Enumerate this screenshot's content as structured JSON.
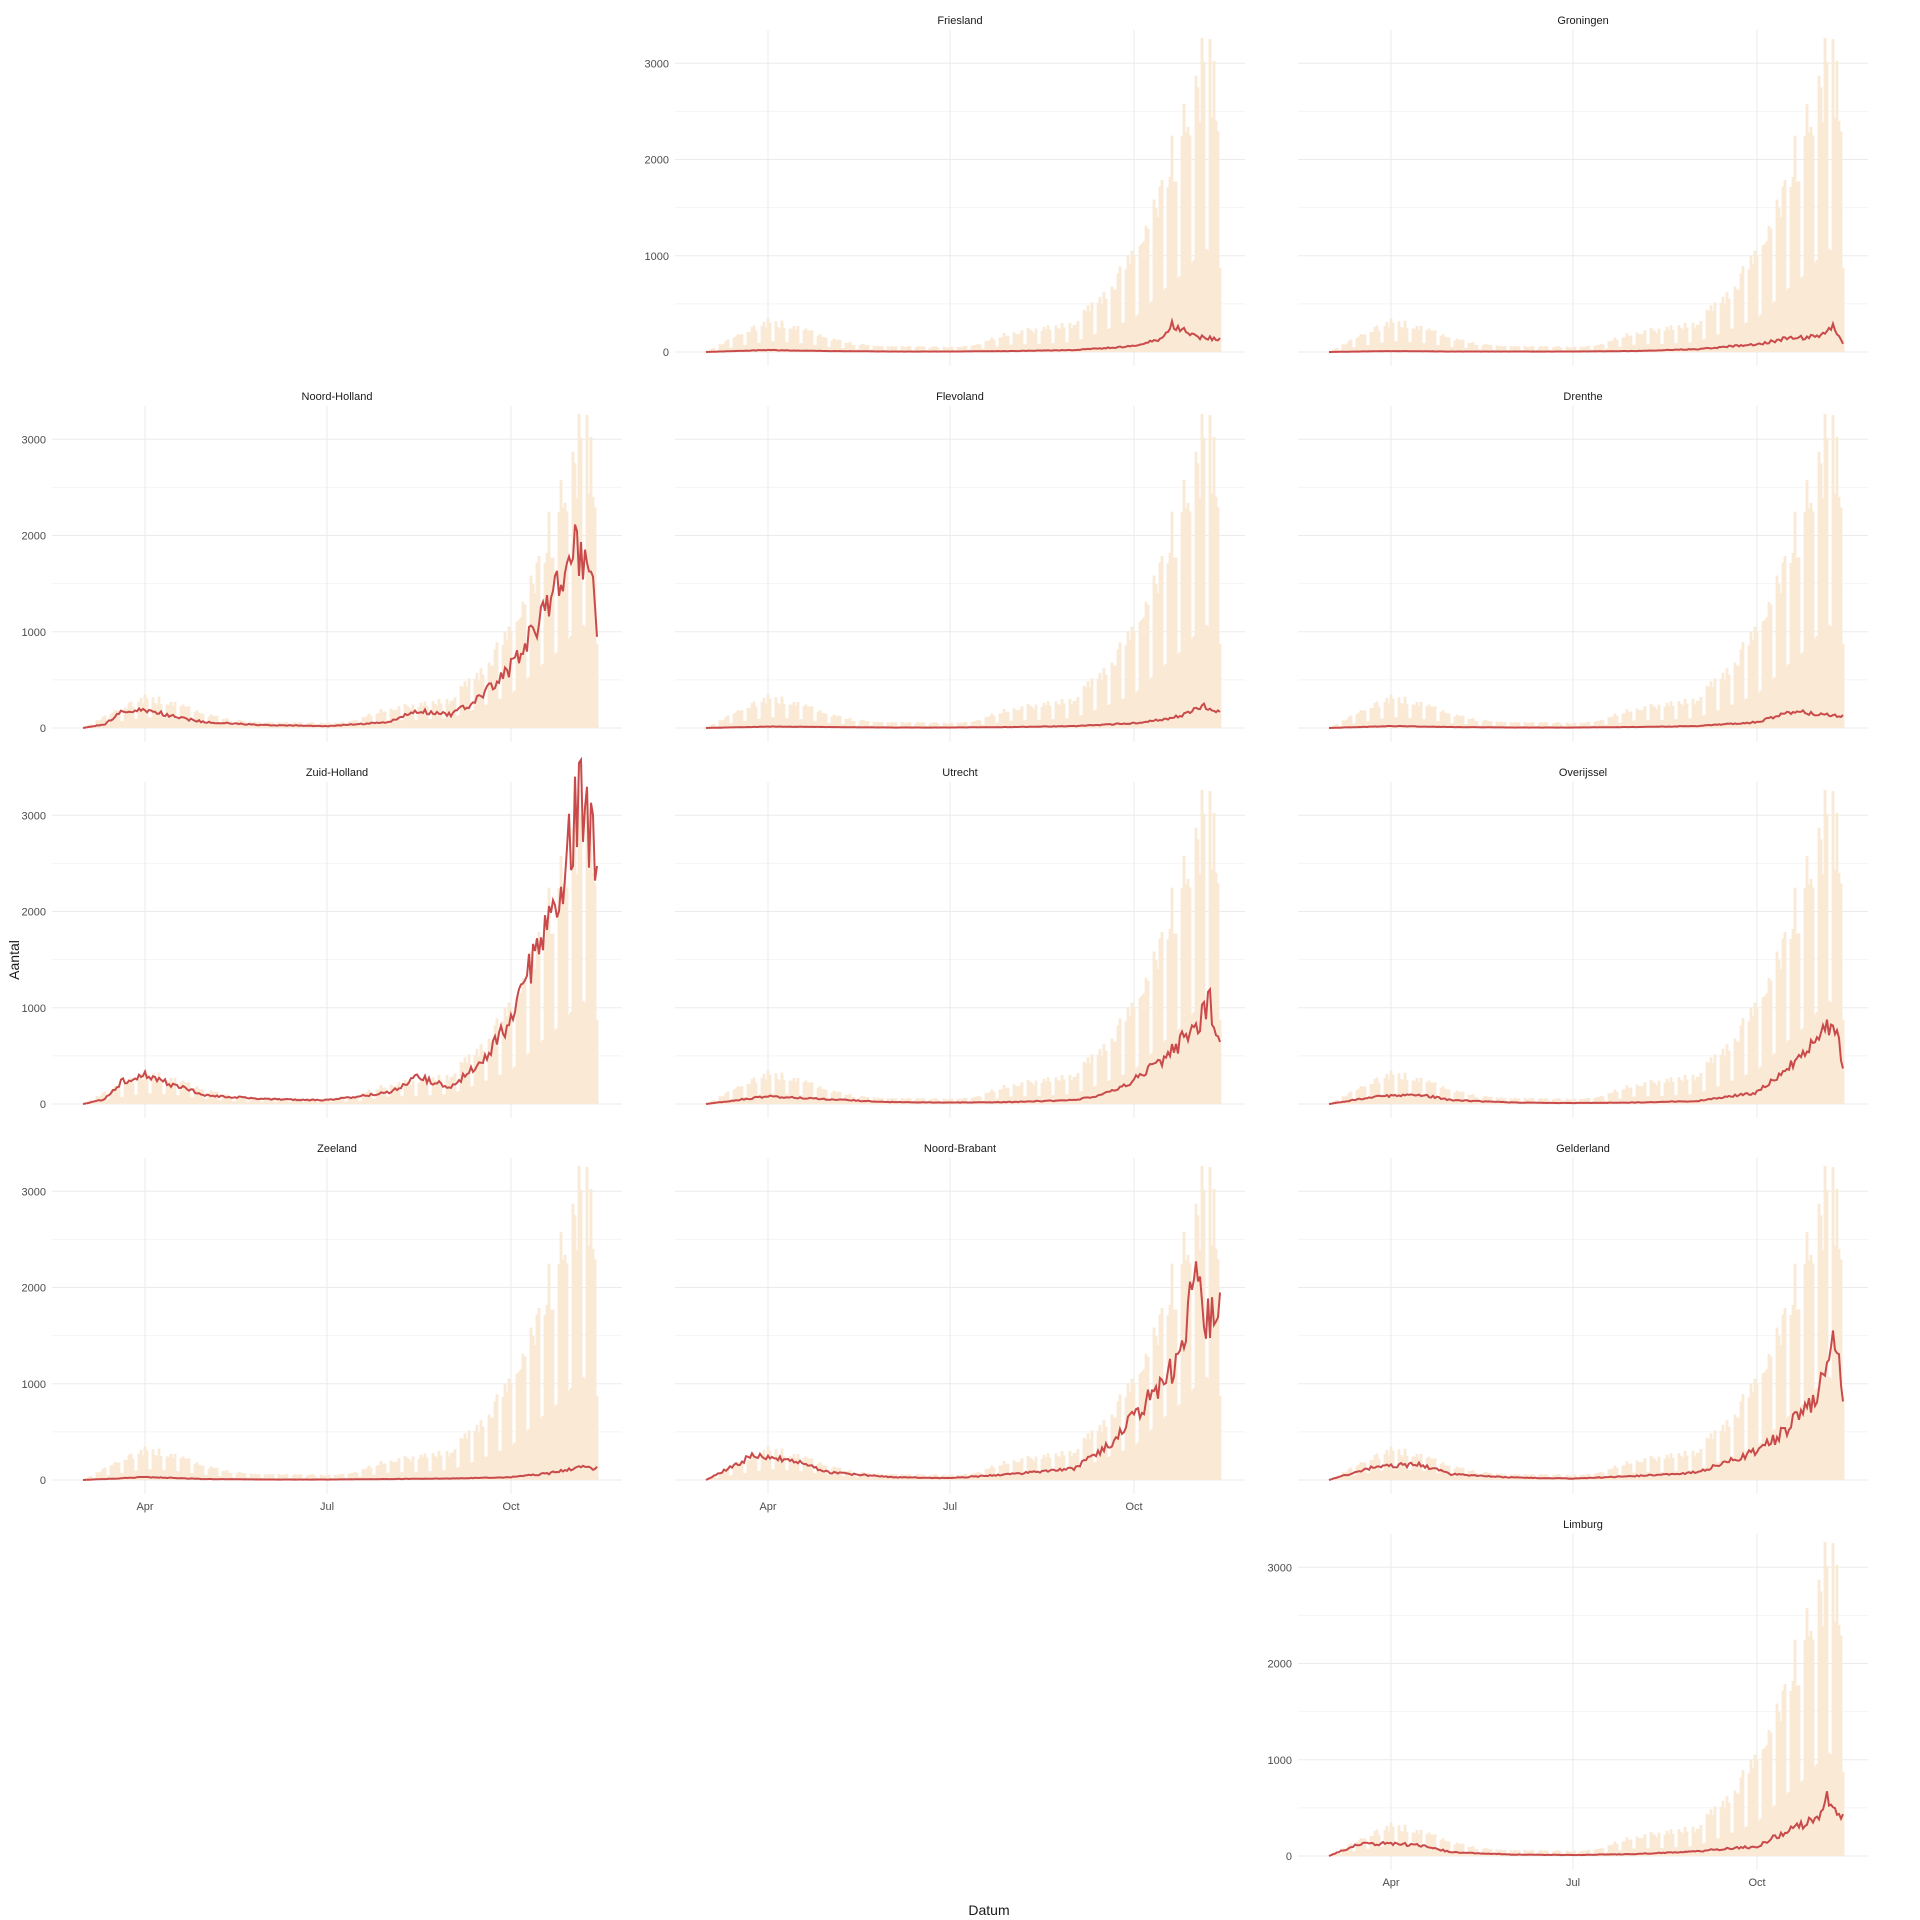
{
  "colors": {
    "background": "#ffffff",
    "grid_major": "#ebebeb",
    "grid_minor": "#f4f4f4",
    "national_bars": "#fae9d4",
    "province_line": "#c94a4a"
  },
  "chart_data": {
    "type": "line",
    "facet_layout": "4x3 grid plus one trailing panel",
    "xlabel": "Datum",
    "ylabel": "Aantal",
    "x_ticks": [
      "Apr",
      "Jul",
      "Oct"
    ],
    "x_range": [
      "2020-02-27",
      "2020-11-13"
    ],
    "y_ticks": [
      0,
      1000,
      2000,
      3000
    ],
    "ylim": [
      0,
      3200
    ],
    "grid": true,
    "background_series": {
      "type": "bar",
      "x": [
        "2020-03-01",
        "2020-03-15",
        "2020-04-01",
        "2020-04-15",
        "2020-05-01",
        "2020-05-15",
        "2020-06-01",
        "2020-06-15",
        "2020-07-01",
        "2020-07-15",
        "2020-08-01",
        "2020-08-15",
        "2020-09-01",
        "2020-09-15",
        "2020-10-01",
        "2020-10-15",
        "2020-10-25",
        "2020-11-01",
        "2020-11-05",
        "2020-11-10",
        "2020-11-13"
      ],
      "values": [
        0,
        150,
        320,
        280,
        150,
        80,
        60,
        60,
        50,
        80,
        220,
        240,
        300,
        600,
        1000,
        1800,
        2300,
        2800,
        3100,
        2900,
        2500
      ]
    },
    "panels": [
      {
        "title": "Friesland",
        "x": [
          "2020-03-01",
          "2020-04-01",
          "2020-05-01",
          "2020-06-01",
          "2020-07-01",
          "2020-08-01",
          "2020-09-01",
          "2020-10-01",
          "2020-10-15",
          "2020-10-20",
          "2020-11-01",
          "2020-11-13"
        ],
        "values": [
          0,
          20,
          10,
          5,
          5,
          10,
          20,
          60,
          140,
          280,
          160,
          130
        ]
      },
      {
        "title": "Groningen",
        "x": [
          "2020-03-01",
          "2020-04-01",
          "2020-05-01",
          "2020-06-01",
          "2020-07-01",
          "2020-08-01",
          "2020-09-01",
          "2020-10-01",
          "2020-10-15",
          "2020-11-01",
          "2020-11-08",
          "2020-11-13"
        ],
        "values": [
          0,
          10,
          5,
          5,
          5,
          10,
          30,
          80,
          140,
          160,
          260,
          90
        ]
      },
      {
        "title": "Noord-Holland",
        "x": [
          "2020-03-01",
          "2020-03-12",
          "2020-03-20",
          "2020-04-01",
          "2020-04-15",
          "2020-05-01",
          "2020-06-01",
          "2020-07-01",
          "2020-08-01",
          "2020-08-15",
          "2020-09-01",
          "2020-09-15",
          "2020-10-01",
          "2020-10-15",
          "2020-10-25",
          "2020-11-01",
          "2020-11-05",
          "2020-11-10",
          "2020-11-13"
        ],
        "values": [
          0,
          40,
          160,
          190,
          120,
          60,
          30,
          20,
          60,
          180,
          140,
          300,
          640,
          1100,
          1500,
          1900,
          1800,
          1600,
          1070
        ]
      },
      {
        "title": "Flevoland",
        "x": [
          "2020-03-01",
          "2020-04-01",
          "2020-05-01",
          "2020-06-01",
          "2020-07-01",
          "2020-08-01",
          "2020-09-01",
          "2020-10-01",
          "2020-10-20",
          "2020-11-05",
          "2020-11-13"
        ],
        "values": [
          0,
          15,
          10,
          5,
          5,
          10,
          20,
          50,
          100,
          220,
          160
        ]
      },
      {
        "title": "Drenthe",
        "x": [
          "2020-03-01",
          "2020-04-01",
          "2020-05-01",
          "2020-06-01",
          "2020-07-01",
          "2020-08-01",
          "2020-09-01",
          "2020-10-01",
          "2020-10-20",
          "2020-11-01",
          "2020-11-13"
        ],
        "values": [
          0,
          20,
          10,
          5,
          5,
          10,
          20,
          60,
          180,
          140,
          130
        ]
      },
      {
        "title": "Zuid-Holland",
        "x": [
          "2020-03-01",
          "2020-03-12",
          "2020-03-20",
          "2020-04-01",
          "2020-04-15",
          "2020-05-01",
          "2020-06-01",
          "2020-07-01",
          "2020-08-01",
          "2020-08-15",
          "2020-09-01",
          "2020-09-15",
          "2020-10-01",
          "2020-10-15",
          "2020-10-25",
          "2020-11-01",
          "2020-11-05",
          "2020-11-10",
          "2020-11-13"
        ],
        "values": [
          0,
          50,
          230,
          300,
          200,
          90,
          50,
          40,
          120,
          280,
          180,
          400,
          900,
          1700,
          2200,
          2900,
          3150,
          2800,
          2480
        ]
      },
      {
        "title": "Utrecht",
        "x": [
          "2020-03-01",
          "2020-04-01",
          "2020-05-01",
          "2020-06-01",
          "2020-07-01",
          "2020-08-01",
          "2020-09-01",
          "2020-09-15",
          "2020-10-01",
          "2020-10-15",
          "2020-11-01",
          "2020-11-08",
          "2020-11-13"
        ],
        "values": [
          0,
          80,
          50,
          20,
          15,
          20,
          40,
          90,
          250,
          450,
          800,
          1050,
          620
        ]
      },
      {
        "title": "Overijssel",
        "x": [
          "2020-03-01",
          "2020-03-25",
          "2020-04-15",
          "2020-05-01",
          "2020-06-01",
          "2020-07-01",
          "2020-08-01",
          "2020-09-01",
          "2020-10-01",
          "2020-10-15",
          "2020-11-01",
          "2020-11-08",
          "2020-11-13"
        ],
        "values": [
          0,
          80,
          100,
          40,
          15,
          10,
          15,
          30,
          120,
          350,
          700,
          880,
          420
        ]
      },
      {
        "title": "Zeeland",
        "x": [
          "2020-03-01",
          "2020-04-01",
          "2020-05-01",
          "2020-06-01",
          "2020-07-01",
          "2020-08-01",
          "2020-09-01",
          "2020-10-01",
          "2020-10-20",
          "2020-11-05",
          "2020-11-13"
        ],
        "values": [
          0,
          30,
          10,
          5,
          5,
          10,
          15,
          30,
          70,
          130,
          120
        ]
      },
      {
        "title": "Noord-Brabant",
        "x": [
          "2020-03-01",
          "2020-03-15",
          "2020-03-25",
          "2020-04-15",
          "2020-05-01",
          "2020-06-01",
          "2020-07-01",
          "2020-08-01",
          "2020-09-01",
          "2020-09-15",
          "2020-10-01",
          "2020-10-15",
          "2020-10-25",
          "2020-11-01",
          "2020-11-05",
          "2020-11-10",
          "2020-11-13"
        ],
        "values": [
          0,
          150,
          260,
          200,
          80,
          30,
          20,
          60,
          120,
          300,
          650,
          1000,
          1300,
          2200,
          1600,
          1700,
          1780
        ]
      },
      {
        "title": "Gelderland",
        "x": [
          "2020-03-01",
          "2020-03-20",
          "2020-04-01",
          "2020-04-15",
          "2020-05-01",
          "2020-06-01",
          "2020-07-01",
          "2020-08-01",
          "2020-09-01",
          "2020-09-15",
          "2020-10-01",
          "2020-10-15",
          "2020-11-01",
          "2020-11-08",
          "2020-11-13"
        ],
        "values": [
          0,
          120,
          150,
          160,
          60,
          25,
          15,
          40,
          80,
          180,
          300,
          500,
          900,
          1500,
          920
        ]
      },
      {
        "title": "Limburg",
        "x": [
          "2020-03-01",
          "2020-03-15",
          "2020-04-01",
          "2020-04-15",
          "2020-05-01",
          "2020-06-01",
          "2020-07-01",
          "2020-08-01",
          "2020-09-01",
          "2020-10-01",
          "2020-10-15",
          "2020-11-01",
          "2020-11-05",
          "2020-11-13"
        ],
        "values": [
          0,
          120,
          130,
          110,
          40,
          15,
          10,
          20,
          50,
          100,
          250,
          400,
          620,
          380
        ]
      }
    ]
  }
}
